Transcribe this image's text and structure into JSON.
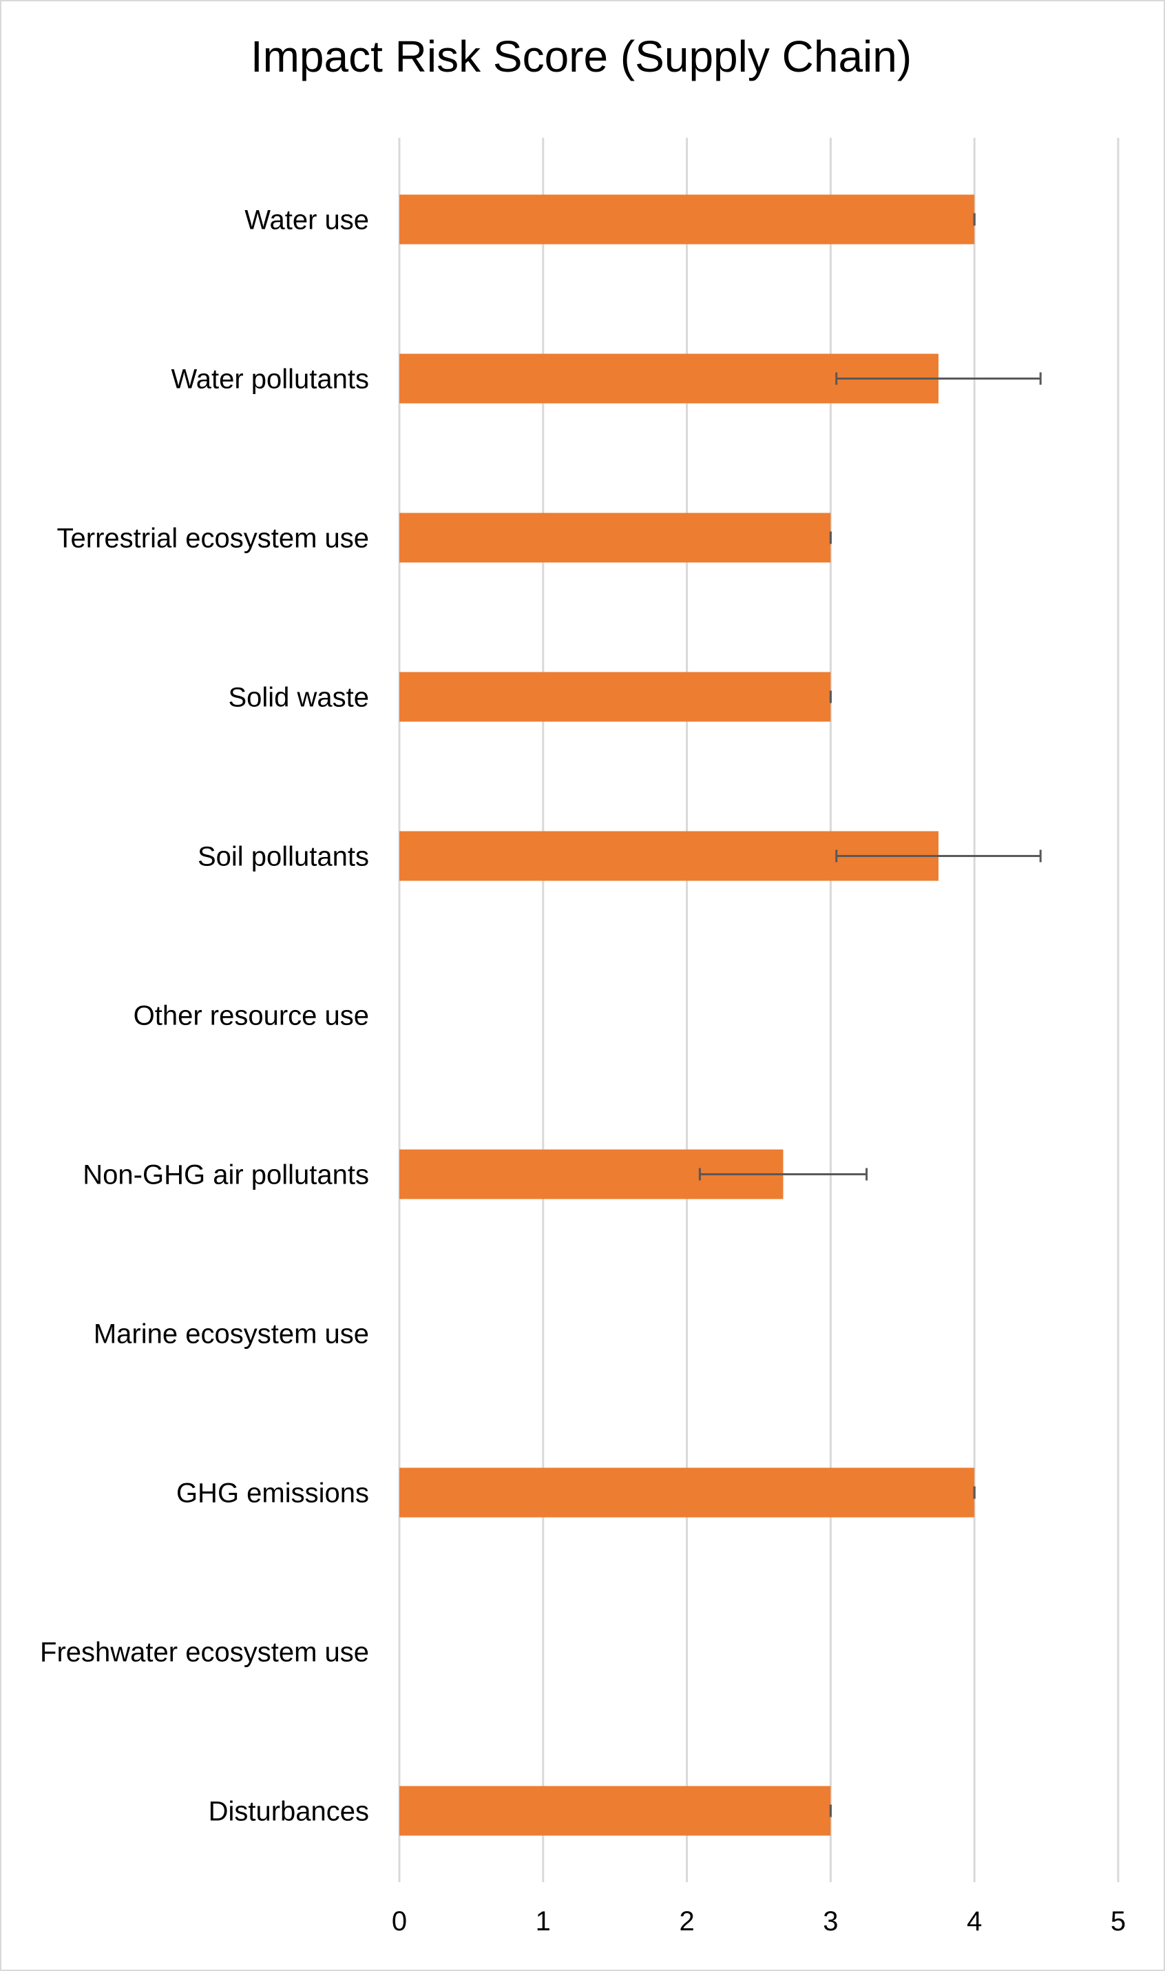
{
  "chart_data": {
    "type": "bar",
    "orientation": "horizontal",
    "title": "Impact Risk Score (Supply Chain)",
    "xlabel": "",
    "ylabel": "",
    "xlim": [
      0,
      5
    ],
    "x_ticks": [
      "0",
      "1",
      "2",
      "3",
      "4",
      "5"
    ],
    "grid": "vertical",
    "categories": [
      "Water use",
      "Water pollutants",
      "Terrestrial ecosystem use",
      "Solid waste",
      "Soil pollutants",
      "Other resource use",
      "Non-GHG air pollutants",
      "Marine ecosystem use",
      "GHG emissions",
      "Freshwater ecosystem use",
      "Disturbances"
    ],
    "values": [
      4,
      3.75,
      3,
      3,
      3.75,
      null,
      2.67,
      null,
      4,
      null,
      3
    ],
    "error_bars": [
      0,
      0.71,
      0,
      0,
      0.71,
      null,
      0.58,
      null,
      0,
      null,
      0
    ],
    "colors": {
      "bar": "#ED7D31",
      "grid": "#d9d9d9",
      "error_bar": "#595959",
      "frame": "#d9d9d9"
    }
  }
}
